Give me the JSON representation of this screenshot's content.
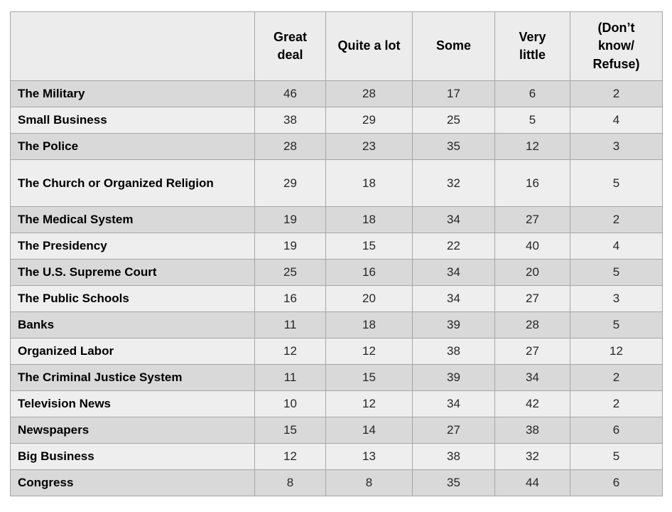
{
  "table": {
    "columns": [
      {
        "label": ""
      },
      {
        "label": "Great\ndeal"
      },
      {
        "label": "Quite a lot"
      },
      {
        "label": "Some"
      },
      {
        "label": "Very\nlittle"
      },
      {
        "label": "(Don’t\nknow/\nRefuse)"
      }
    ],
    "rows": [
      {
        "label": "The Military",
        "tall": false,
        "values": [
          46,
          28,
          17,
          6,
          2
        ]
      },
      {
        "label": "Small Business",
        "tall": false,
        "values": [
          38,
          29,
          25,
          5,
          4
        ]
      },
      {
        "label": "The Police",
        "tall": false,
        "values": [
          28,
          23,
          35,
          12,
          3
        ]
      },
      {
        "label": "The Church or Organized Religion",
        "tall": true,
        "values": [
          29,
          18,
          32,
          16,
          5
        ]
      },
      {
        "label": "The Medical System",
        "tall": false,
        "values": [
          19,
          18,
          34,
          27,
          2
        ]
      },
      {
        "label": "The Presidency",
        "tall": false,
        "values": [
          19,
          15,
          22,
          40,
          4
        ]
      },
      {
        "label": "The U.S. Supreme Court",
        "tall": false,
        "values": [
          25,
          16,
          34,
          20,
          5
        ]
      },
      {
        "label": "The Public Schools",
        "tall": false,
        "values": [
          16,
          20,
          34,
          27,
          3
        ]
      },
      {
        "label": "Banks",
        "tall": false,
        "values": [
          11,
          18,
          39,
          28,
          5
        ]
      },
      {
        "label": "Organized Labor",
        "tall": false,
        "values": [
          12,
          12,
          38,
          27,
          12
        ]
      },
      {
        "label": "The Criminal Justice System",
        "tall": false,
        "values": [
          11,
          15,
          39,
          34,
          2
        ]
      },
      {
        "label": "Television News",
        "tall": false,
        "values": [
          10,
          12,
          34,
          42,
          2
        ]
      },
      {
        "label": "Newspapers",
        "tall": false,
        "values": [
          15,
          14,
          27,
          38,
          6
        ]
      },
      {
        "label": "Big Business",
        "tall": false,
        "values": [
          12,
          13,
          38,
          32,
          5
        ]
      },
      {
        "label": "Congress",
        "tall": false,
        "values": [
          8,
          8,
          35,
          44,
          6
        ]
      }
    ],
    "colors": {
      "band_dark": "#d9d9d9",
      "band_light": "#eeeeee",
      "header_bg": "#ececec",
      "grid_line": "#a6a6a6",
      "label_text": "#000000",
      "value_text": "#262626"
    }
  },
  "chart_data": {
    "type": "table",
    "categories": [
      "The Military",
      "Small Business",
      "The Police",
      "The Church or Organized Religion",
      "The Medical System",
      "The Presidency",
      "The U.S. Supreme Court",
      "The Public Schools",
      "Banks",
      "Organized Labor",
      "The Criminal Justice System",
      "Television News",
      "Newspapers",
      "Big Business",
      "Congress"
    ],
    "series": [
      {
        "name": "Great deal",
        "values": [
          46,
          38,
          28,
          29,
          19,
          19,
          25,
          16,
          11,
          12,
          11,
          10,
          15,
          12,
          8
        ]
      },
      {
        "name": "Quite a lot",
        "values": [
          28,
          29,
          23,
          18,
          18,
          15,
          16,
          20,
          18,
          12,
          15,
          12,
          14,
          13,
          8
        ]
      },
      {
        "name": "Some",
        "values": [
          17,
          25,
          35,
          32,
          34,
          22,
          34,
          34,
          39,
          38,
          39,
          34,
          27,
          38,
          35
        ]
      },
      {
        "name": "Very little",
        "values": [
          6,
          5,
          12,
          16,
          27,
          40,
          20,
          27,
          28,
          27,
          34,
          42,
          38,
          32,
          44
        ]
      },
      {
        "name": "(Don’t know/Refuse)",
        "values": [
          2,
          4,
          3,
          5,
          2,
          4,
          5,
          3,
          5,
          12,
          2,
          2,
          6,
          5,
          6
        ]
      }
    ],
    "title": "",
    "legend_position": "none",
    "grid": true
  }
}
